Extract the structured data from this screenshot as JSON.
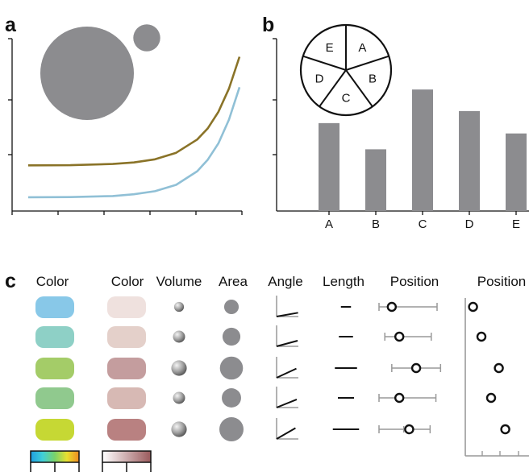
{
  "panels": {
    "a": "a",
    "b": "b",
    "c": "c"
  },
  "chart_data": [
    {
      "type": "line",
      "panel": "a",
      "title": "",
      "xlabel": "",
      "ylabel": "",
      "xlim": [
        0,
        1
      ],
      "ylim": [
        0,
        1
      ],
      "grid": false,
      "series": [
        {
          "color": "#8a7328",
          "x": [
            0.0,
            0.2,
            0.4,
            0.5,
            0.6,
            0.7,
            0.8,
            0.85,
            0.9,
            0.95,
            1.0
          ],
          "y": [
            0.265,
            0.266,
            0.273,
            0.282,
            0.3,
            0.338,
            0.415,
            0.48,
            0.575,
            0.71,
            0.895
          ]
        },
        {
          "color": "#90c0d6",
          "x": [
            0.0,
            0.2,
            0.4,
            0.5,
            0.6,
            0.7,
            0.8,
            0.85,
            0.9,
            0.95,
            1.0
          ],
          "y": [
            0.08,
            0.081,
            0.087,
            0.097,
            0.115,
            0.152,
            0.231,
            0.298,
            0.392,
            0.53,
            0.718
          ]
        }
      ],
      "circles": {
        "color": "#8c8c8f",
        "relative_area": [
          1.0,
          0.083
        ]
      }
    },
    {
      "type": "bar",
      "panel": "b",
      "title": "",
      "xlabel": "",
      "ylabel": "",
      "categories": [
        "A",
        "B",
        "C",
        "D",
        "E"
      ],
      "values": [
        0.51,
        0.358,
        0.705,
        0.58,
        0.45
      ],
      "ylim": [
        0,
        1
      ],
      "grid": false,
      "bar_color": "#8c8c8f",
      "pie": {
        "labels": [
          "E",
          "A",
          "B",
          "C",
          "D"
        ],
        "values": [
          20,
          20,
          20,
          20,
          20
        ]
      }
    },
    {
      "type": "table",
      "panel": "c",
      "headers": [
        "Color",
        "Color",
        "Volume",
        "Area",
        "Angle",
        "Length",
        "Position",
        "Position"
      ],
      "rows": 5,
      "hue_colors": [
        "#88c8e8",
        "#8ed0c6",
        "#a4cc68",
        "#90c98e",
        "#c6d834"
      ],
      "tint_colors": [
        "#efe1de",
        "#e4d0ca",
        "#c49d9e",
        "#d7b9b4",
        "#b98181"
      ],
      "volume_values": [
        0.3,
        0.5,
        0.8,
        0.5,
        0.8
      ],
      "area_values": [
        0.4,
        0.6,
        1.0,
        0.7,
        1.1
      ],
      "angle_degrees": [
        10,
        15,
        25,
        22,
        30
      ],
      "length_values": [
        0.25,
        0.35,
        0.55,
        0.4,
        0.65
      ],
      "position_errorbar": [
        {
          "center": 0.22,
          "low": 0.0,
          "high": 1.0
        },
        {
          "center": 0.35,
          "low": 0.1,
          "high": 0.9
        },
        {
          "center": 0.64,
          "low": 0.22,
          "high": 1.06
        },
        {
          "center": 0.35,
          "low": 0.0,
          "high": 0.98
        },
        {
          "center": 0.52,
          "low": 0.0,
          "high": 0.88
        }
      ],
      "position_values": [
        0.12,
        0.25,
        0.52,
        0.4,
        0.62
      ]
    }
  ]
}
